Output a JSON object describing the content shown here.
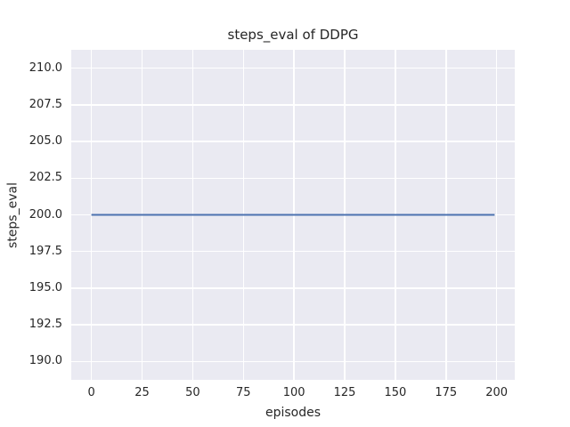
{
  "figure": {
    "background_color": "#ffffff",
    "axes_background_color": "#eaeaf2",
    "grid_color": "#ffffff",
    "text_color": "#262626"
  },
  "chart_data": {
    "type": "line",
    "title": "steps_eval of DDPG",
    "xlabel": "episodes",
    "ylabel": "steps_eval",
    "xlim": [
      -9.95,
      208.95
    ],
    "ylim": [
      188.75,
      211.25
    ],
    "x_ticks": [
      0,
      25,
      50,
      75,
      100,
      125,
      150,
      175,
      200
    ],
    "y_ticks": [
      190.0,
      192.5,
      195.0,
      197.5,
      200.0,
      202.5,
      205.0,
      207.5,
      210.0
    ],
    "x_tick_labels": [
      "0",
      "25",
      "50",
      "75",
      "100",
      "125",
      "150",
      "175",
      "200"
    ],
    "y_tick_labels": [
      "190.0",
      "192.5",
      "195.0",
      "197.5",
      "200.0",
      "202.5",
      "205.0",
      "207.5",
      "210.0"
    ],
    "grid": true,
    "legend": false,
    "series": [
      {
        "name": "steps_eval",
        "color": "#4c72b0",
        "line_width": 2,
        "x": [
          0,
          199
        ],
        "y": [
          200.0,
          200.0
        ]
      }
    ]
  }
}
